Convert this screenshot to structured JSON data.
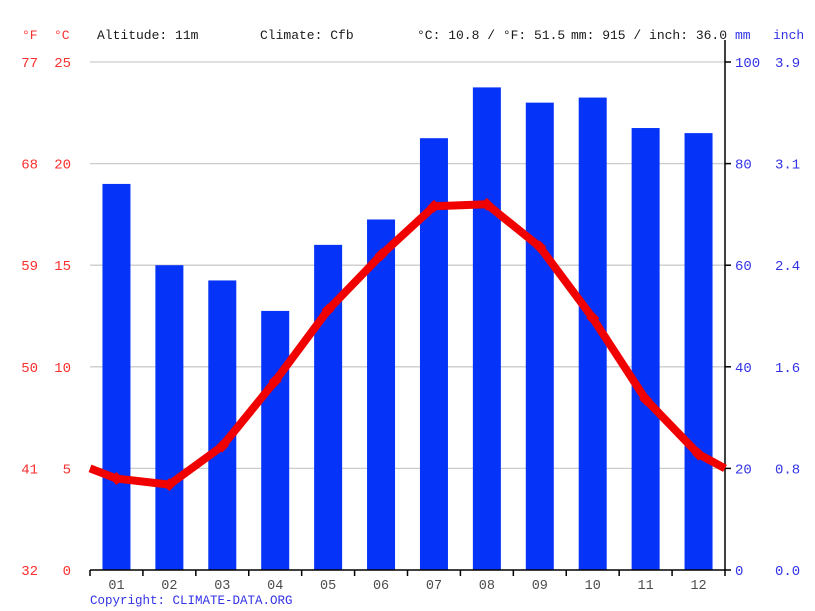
{
  "header": {
    "f_label": "°F",
    "c_label": "°C",
    "altitude": "Altitude: 11m",
    "climate": "Climate: Cfb",
    "temp_summary": "°C: 10.8 / °F: 51.5",
    "precip_summary": "mm: 915 / inch: 36.0",
    "mm_label": "mm",
    "inch_label": "inch"
  },
  "axes": {
    "f_ticks": [
      "77",
      "68",
      "59",
      "50",
      "41",
      "32"
    ],
    "c_ticks": [
      "25",
      "20",
      "15",
      "10",
      "5",
      "0"
    ],
    "mm_ticks": [
      "100",
      "80",
      "60",
      "40",
      "20",
      "0"
    ],
    "inch_ticks": [
      "3.9",
      "3.1",
      "2.4",
      "1.6",
      "0.8",
      "0.0"
    ]
  },
  "chart_data": {
    "type": "bar+line",
    "title": "",
    "categories": [
      "01",
      "02",
      "03",
      "04",
      "05",
      "06",
      "07",
      "08",
      "09",
      "10",
      "11",
      "12"
    ],
    "series": [
      {
        "name": "precipitation",
        "type": "bar",
        "unit": "mm",
        "values": [
          76,
          60,
          57,
          51,
          64,
          69,
          85,
          95,
          92,
          93,
          87,
          86
        ],
        "color": "#0533f7"
      },
      {
        "name": "temperature",
        "type": "line",
        "unit": "°C",
        "values": [
          4.5,
          4.2,
          6.1,
          9.3,
          12.8,
          15.5,
          17.9,
          18.0,
          15.9,
          12.4,
          8.4,
          5.7
        ],
        "edge_start_value": 5.0,
        "edge_end_value": 5.0,
        "color": "#f10000"
      }
    ],
    "ylim_left_c": [
      0,
      25
    ],
    "ylim_right_mm": [
      0,
      100
    ],
    "grid": true,
    "legend_position": "none"
  },
  "colors": {
    "bar_blue": "#0533f7",
    "line_red": "#f10000",
    "red_text": "#fb2e2e",
    "blue_text": "#3333e6",
    "black_text": "#1a1a1a",
    "month_text": "#4d4d4d",
    "gridline": "#cccccc",
    "axis": "#000000"
  },
  "copyright": {
    "prefix": "Copyright: ",
    "link": "CLIMATE-DATA.ORG"
  }
}
